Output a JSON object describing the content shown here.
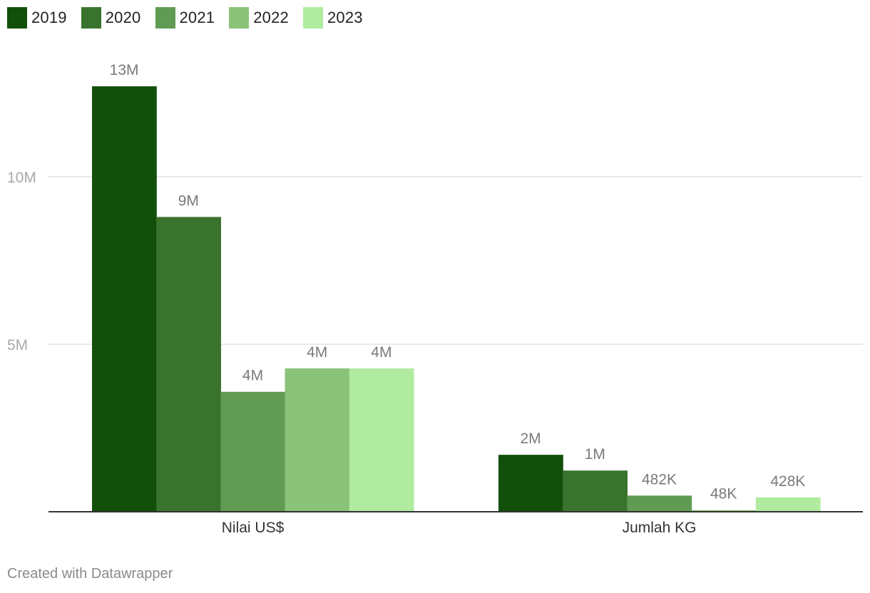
{
  "chart_data": {
    "type": "bar",
    "categories": [
      "Nilai US$",
      "Jumlah KG"
    ],
    "series": [
      {
        "name": "2019",
        "color": "#124f0a",
        "values": [
          12.7,
          1.7
        ],
        "labels": [
          "13M",
          "2M"
        ]
      },
      {
        "name": "2020",
        "color": "#3a732e",
        "values": [
          8.8,
          1.23
        ],
        "labels": [
          "9M",
          "1M"
        ]
      },
      {
        "name": "2021",
        "color": "#619a52",
        "values": [
          3.58,
          0.482
        ],
        "labels": [
          "4M",
          "482K"
        ]
      },
      {
        "name": "2022",
        "color": "#8ac278",
        "values": [
          4.28,
          0.048
        ],
        "labels": [
          "4M",
          "48K"
        ]
      },
      {
        "name": "2023",
        "color": "#b0eb9f",
        "values": [
          4.28,
          0.428
        ],
        "labels": [
          "4M",
          "428K"
        ]
      }
    ],
    "y_unit": "millions",
    "ylim": [
      0,
      14.5
    ],
    "yticks": [
      {
        "value": 5,
        "label": "5M"
      },
      {
        "value": 10,
        "label": "10M"
      }
    ],
    "grid": true,
    "legend_position": "top-left",
    "xlabel": "",
    "ylabel": "",
    "title": ""
  },
  "footer": {
    "credit": "Created with Datawrapper"
  }
}
